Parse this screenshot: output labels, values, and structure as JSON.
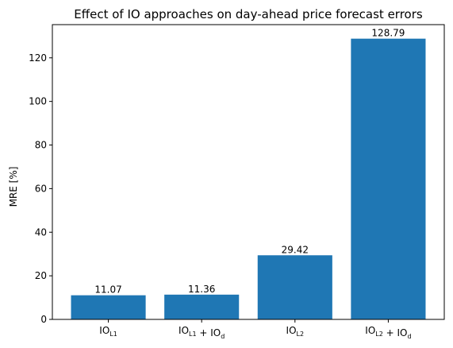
{
  "chart_data": {
    "type": "bar",
    "title": "Effect of IO approaches on day-ahead price forecast errors",
    "xlabel": "",
    "ylabel": "MRE [%]",
    "ylim": [
      0,
      135.23
    ],
    "yticks": [
      0,
      20,
      40,
      60,
      80,
      100,
      120
    ],
    "categories": [
      [
        {
          "text": "IO",
          "sub": "L1"
        }
      ],
      [
        {
          "text": "IO",
          "sub": "L1"
        },
        {
          "text": " + IO",
          "sub": "d"
        }
      ],
      [
        {
          "text": "IO",
          "sub": "L2"
        }
      ],
      [
        {
          "text": "IO",
          "sub": "L2"
        },
        {
          "text": " + IO",
          "sub": "d"
        }
      ]
    ],
    "values": [
      11.07,
      11.36,
      29.42,
      128.79
    ],
    "data_labels": [
      "11.07",
      "11.36",
      "29.42",
      "128.79"
    ],
    "bar_color": "#1f77b4",
    "grid": false,
    "legend": "none"
  }
}
